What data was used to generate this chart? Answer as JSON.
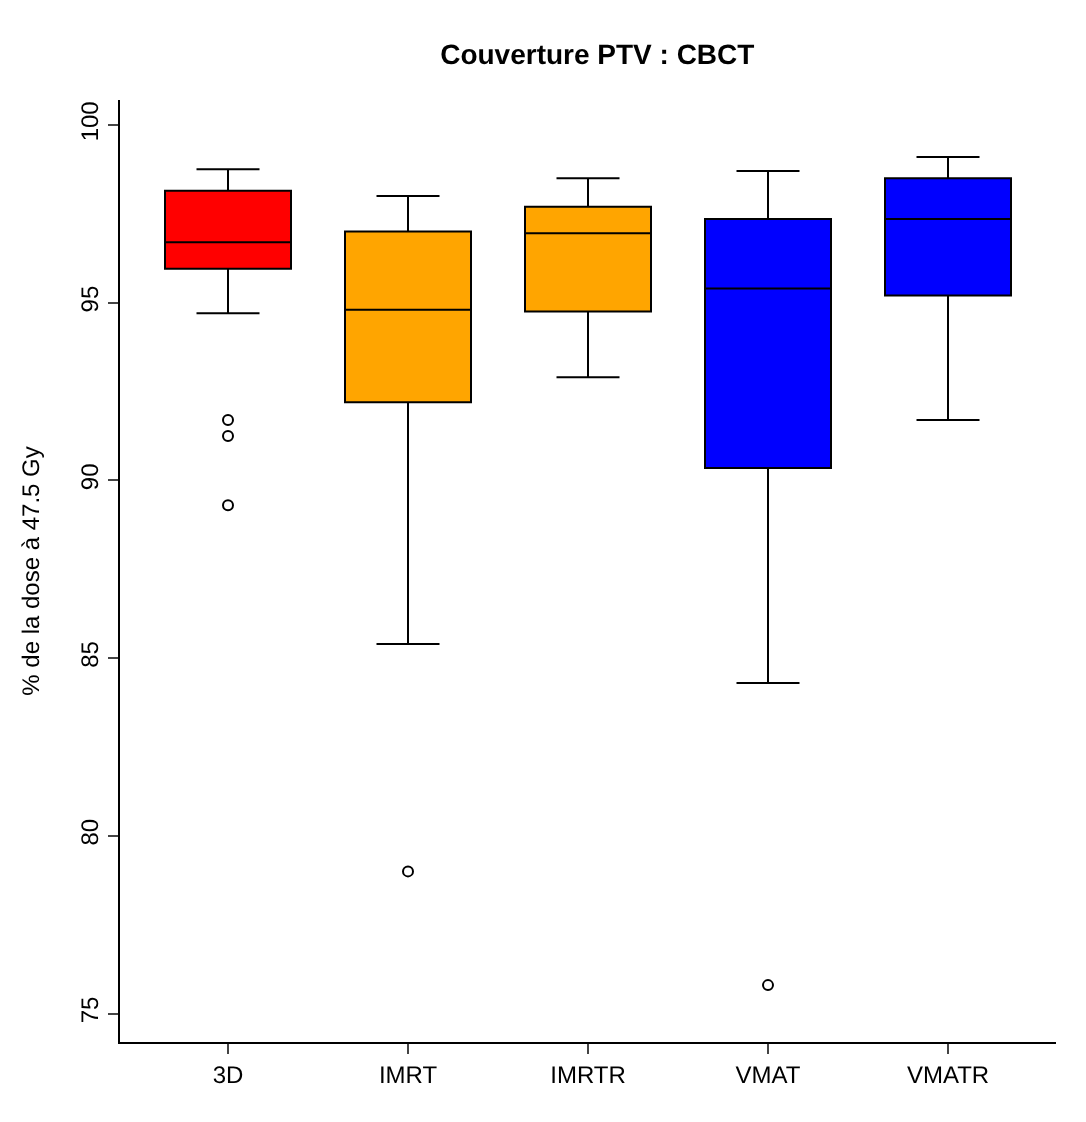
{
  "chart_data": {
    "type": "box",
    "title": "Couverture PTV : CBCT",
    "ylabel": "% de la dose à 47.5 Gy",
    "categories": [
      "3D",
      "IMRT",
      "IMRTR",
      "VMAT",
      "VMATR"
    ],
    "colors": [
      "#ff0000",
      "#ffa500",
      "#ffa500",
      "#0000ff",
      "#0000ff"
    ],
    "boxes": [
      {
        "low": 94.7,
        "q1": 95.95,
        "median": 96.7,
        "q3": 98.15,
        "high": 98.75,
        "outliers": [
          91.7,
          91.25,
          89.3
        ]
      },
      {
        "low": 85.4,
        "q1": 92.2,
        "median": 94.8,
        "q3": 97.0,
        "high": 98.0,
        "outliers": [
          79.0
        ]
      },
      {
        "low": 92.9,
        "q1": 94.75,
        "median": 96.95,
        "q3": 97.7,
        "high": 98.5
      },
      {
        "low": 84.3,
        "q1": 90.35,
        "median": 95.4,
        "q3": 97.35,
        "high": 98.7,
        "outliers": [
          75.8
        ]
      },
      {
        "low": 91.7,
        "q1": 95.2,
        "median": 97.35,
        "q3": 98.5,
        "high": 99.1
      }
    ],
    "ylim": [
      74.2,
      100.7
    ],
    "yticks": [
      75,
      80,
      85,
      90,
      95,
      100
    ]
  }
}
